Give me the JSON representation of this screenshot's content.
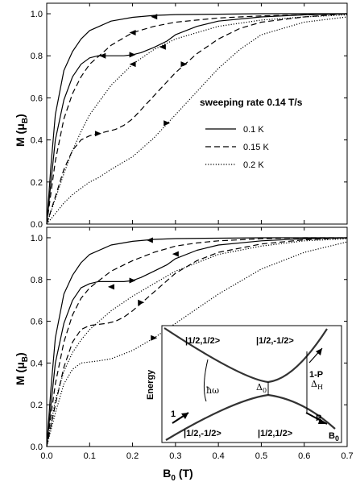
{
  "chart_data": [
    {
      "type": "line",
      "panel": "top",
      "xlim": [
        0,
        0.7
      ],
      "ylim": [
        0,
        1.05
      ],
      "xticks": [
        "0.0",
        "0.1",
        "0.2",
        "0.3",
        "0.4",
        "0.5",
        "0.6",
        "0.7"
      ],
      "yticks": [
        "0.0",
        "0.2",
        "0.4",
        "0.6",
        "0.8",
        "1.0"
      ],
      "ylabel_main": "M (μ",
      "ylabel_sub": "B",
      "ylabel_end": ")",
      "annotation": "sweeping rate 0.14 T/s",
      "legend_position": "right",
      "series": [
        {
          "name": "0.1 K",
          "style": "solid",
          "branch": "up",
          "x": [
            0,
            0.01,
            0.02,
            0.04,
            0.06,
            0.08,
            0.1,
            0.12,
            0.15,
            0.18,
            0.2,
            0.22,
            0.25,
            0.28,
            0.3,
            0.35,
            0.4,
            0.5,
            0.6,
            0.7
          ],
          "y": [
            0,
            0.2,
            0.4,
            0.59,
            0.7,
            0.76,
            0.79,
            0.8,
            0.8,
            0.8,
            0.805,
            0.815,
            0.84,
            0.87,
            0.9,
            0.94,
            0.965,
            0.985,
            0.995,
            1.0
          ]
        },
        {
          "name": "0.1 K",
          "style": "solid",
          "branch": "down",
          "x": [
            0,
            0.01,
            0.02,
            0.04,
            0.06,
            0.08,
            0.1,
            0.15,
            0.2,
            0.25,
            0.3,
            0.4,
            0.5,
            0.6,
            0.7
          ],
          "y": [
            0,
            0.28,
            0.52,
            0.73,
            0.82,
            0.88,
            0.92,
            0.965,
            0.983,
            0.992,
            0.996,
            0.998,
            1.0,
            1.0,
            1.0
          ]
        },
        {
          "name": "0.15 K",
          "style": "dashed",
          "branch": "up",
          "x": [
            0,
            0.02,
            0.04,
            0.06,
            0.08,
            0.1,
            0.12,
            0.14,
            0.16,
            0.18,
            0.2,
            0.25,
            0.3,
            0.35,
            0.4,
            0.45,
            0.5,
            0.6,
            0.7
          ],
          "y": [
            0,
            0.13,
            0.26,
            0.35,
            0.4,
            0.42,
            0.43,
            0.44,
            0.45,
            0.47,
            0.5,
            0.61,
            0.72,
            0.81,
            0.88,
            0.93,
            0.96,
            0.985,
            1.0
          ]
        },
        {
          "name": "0.15 K",
          "style": "dashed",
          "branch": "down",
          "x": [
            0,
            0.02,
            0.04,
            0.06,
            0.08,
            0.1,
            0.15,
            0.2,
            0.25,
            0.3,
            0.35,
            0.4,
            0.5,
            0.6,
            0.7
          ],
          "y": [
            0,
            0.3,
            0.5,
            0.62,
            0.7,
            0.76,
            0.85,
            0.91,
            0.94,
            0.96,
            0.97,
            0.98,
            0.99,
            0.995,
            1.0
          ]
        },
        {
          "name": "0.2 K",
          "style": "dotted",
          "branch": "up",
          "x": [
            0,
            0.02,
            0.04,
            0.06,
            0.08,
            0.1,
            0.12,
            0.15,
            0.2,
            0.25,
            0.3,
            0.35,
            0.4,
            0.45,
            0.5,
            0.6,
            0.7
          ],
          "y": [
            0,
            0.05,
            0.1,
            0.14,
            0.17,
            0.2,
            0.22,
            0.26,
            0.32,
            0.41,
            0.52,
            0.63,
            0.74,
            0.83,
            0.9,
            0.96,
            0.985
          ]
        },
        {
          "name": "0.2 K",
          "style": "dotted",
          "branch": "down",
          "x": [
            0,
            0.02,
            0.04,
            0.06,
            0.08,
            0.1,
            0.15,
            0.2,
            0.25,
            0.3,
            0.35,
            0.4,
            0.5,
            0.6,
            0.7
          ],
          "y": [
            0,
            0.12,
            0.24,
            0.35,
            0.44,
            0.52,
            0.66,
            0.76,
            0.83,
            0.88,
            0.91,
            0.94,
            0.97,
            0.985,
            0.995
          ]
        }
      ],
      "arrows": [
        {
          "style": "solid",
          "x": 0.25,
          "y": 0.986,
          "dir": "left"
        },
        {
          "style": "solid",
          "x": 0.2,
          "y": 0.805,
          "dir": "right"
        },
        {
          "style": "dashed",
          "x": 0.2,
          "y": 0.91,
          "dir": "left"
        },
        {
          "style": "dashed",
          "x": 0.12,
          "y": 0.43,
          "dir": "right"
        },
        {
          "style": "dashed",
          "x": 0.32,
          "y": 0.76,
          "dir": "right"
        },
        {
          "style": "dashed",
          "x": 0.27,
          "y": 0.842,
          "dir": "left"
        },
        {
          "style": "dashed",
          "x": 0.13,
          "y": 0.8,
          "dir": "left"
        },
        {
          "style": "dotted",
          "x": 0.2,
          "y": 0.76,
          "dir": "left"
        },
        {
          "style": "dotted",
          "x": 0.28,
          "y": 0.48,
          "dir": "right"
        }
      ],
      "legend": [
        {
          "label": "0.1 K",
          "style": "solid"
        },
        {
          "label": "0.15 K",
          "style": "dashed"
        },
        {
          "label": "0.2 K",
          "style": "dotted"
        }
      ]
    },
    {
      "type": "line",
      "panel": "bottom",
      "xlim": [
        0,
        0.7
      ],
      "ylim": [
        0,
        1.05
      ],
      "xticks": [
        "0.0",
        "0.1",
        "0.2",
        "0.3",
        "0.4",
        "0.5",
        "0.6",
        "0.7"
      ],
      "yticks": [
        "0.0",
        "0.2",
        "0.4",
        "0.6",
        "0.8",
        "1.0"
      ],
      "xlabel_main": "B",
      "xlabel_sub": "0",
      "xlabel_end": " (T)",
      "ylabel_main": "M (μ",
      "ylabel_sub": "B",
      "ylabel_end": ")",
      "series": [
        {
          "name": "0.1 K",
          "style": "solid",
          "branch": "up",
          "x": [
            0,
            0.01,
            0.02,
            0.04,
            0.06,
            0.08,
            0.1,
            0.12,
            0.15,
            0.18,
            0.2,
            0.22,
            0.25,
            0.28,
            0.3,
            0.35,
            0.4,
            0.5,
            0.6,
            0.7
          ],
          "y": [
            0,
            0.2,
            0.4,
            0.59,
            0.7,
            0.76,
            0.78,
            0.79,
            0.79,
            0.79,
            0.795,
            0.81,
            0.84,
            0.87,
            0.9,
            0.94,
            0.965,
            0.985,
            0.995,
            1.0
          ]
        },
        {
          "name": "0.1 K",
          "style": "solid",
          "branch": "down",
          "x": [
            0,
            0.01,
            0.02,
            0.04,
            0.06,
            0.08,
            0.1,
            0.15,
            0.2,
            0.25,
            0.3,
            0.4,
            0.5,
            0.6,
            0.7
          ],
          "y": [
            0,
            0.28,
            0.52,
            0.73,
            0.82,
            0.88,
            0.92,
            0.965,
            0.983,
            0.992,
            0.996,
            0.998,
            1.0,
            1.0,
            1.0
          ]
        },
        {
          "name": "0.15 K",
          "style": "dashed",
          "branch": "up",
          "x": [
            0,
            0.02,
            0.04,
            0.06,
            0.08,
            0.1,
            0.12,
            0.14,
            0.16,
            0.18,
            0.2,
            0.25,
            0.3,
            0.35,
            0.4,
            0.5,
            0.6,
            0.7
          ],
          "y": [
            0,
            0.2,
            0.38,
            0.5,
            0.56,
            0.58,
            0.585,
            0.59,
            0.6,
            0.62,
            0.65,
            0.74,
            0.83,
            0.89,
            0.93,
            0.97,
            0.99,
            1.0
          ]
        },
        {
          "name": "0.15 K",
          "style": "dashed",
          "branch": "down",
          "x": [
            0,
            0.02,
            0.04,
            0.06,
            0.08,
            0.1,
            0.15,
            0.2,
            0.25,
            0.3,
            0.35,
            0.4,
            0.5,
            0.6,
            0.7
          ],
          "y": [
            0,
            0.3,
            0.5,
            0.63,
            0.71,
            0.76,
            0.84,
            0.89,
            0.93,
            0.96,
            0.975,
            0.985,
            0.995,
            1.0,
            1.0
          ]
        },
        {
          "name": "0.2 K",
          "style": "dotted",
          "branch": "up",
          "x": [
            0,
            0.02,
            0.04,
            0.06,
            0.08,
            0.1,
            0.12,
            0.15,
            0.2,
            0.25,
            0.3,
            0.35,
            0.4,
            0.5,
            0.6,
            0.7
          ],
          "y": [
            0,
            0.16,
            0.3,
            0.37,
            0.4,
            0.405,
            0.41,
            0.42,
            0.46,
            0.52,
            0.59,
            0.66,
            0.73,
            0.85,
            0.93,
            0.98
          ]
        },
        {
          "name": "0.2 K",
          "style": "dotted",
          "branch": "down",
          "x": [
            0,
            0.02,
            0.04,
            0.06,
            0.08,
            0.1,
            0.15,
            0.2,
            0.25,
            0.3,
            0.35,
            0.4,
            0.5,
            0.6,
            0.7
          ],
          "y": [
            0,
            0.22,
            0.36,
            0.45,
            0.51,
            0.56,
            0.65,
            0.72,
            0.78,
            0.84,
            0.88,
            0.92,
            0.96,
            0.985,
            0.995
          ]
        }
      ],
      "arrows": [
        {
          "style": "solid",
          "x": 0.24,
          "y": 0.988,
          "dir": "left"
        },
        {
          "style": "solid",
          "x": 0.2,
          "y": 0.795,
          "dir": "right"
        },
        {
          "style": "dashed",
          "x": 0.3,
          "y": 0.922,
          "dir": "left"
        },
        {
          "style": "dashed",
          "x": 0.22,
          "y": 0.69,
          "dir": "right"
        },
        {
          "style": "dashed",
          "x": 0.15,
          "y": 0.765,
          "dir": "left"
        },
        {
          "style": "dotted",
          "x": 0.25,
          "y": 0.52,
          "dir": "right"
        }
      ],
      "inset": {
        "ylabel": "Energy",
        "xlabel_main": "B",
        "xlabel_sub": "0",
        "state_top_left": "|1/2,1/2>",
        "state_top_right": "|1/2,-1/2>",
        "state_bottom_left": "|1/2,-1/2>",
        "state_bottom_right": "|1/2,1/2>",
        "label_photon": "ħω",
        "label_delta0_main": "Δ",
        "label_delta0_sub": "0",
        "label_deltaH_main": "Δ",
        "label_deltaH_sub": "H",
        "label_in": "1",
        "label_out_top": "1-P",
        "label_out_bottom": "P"
      }
    }
  ]
}
